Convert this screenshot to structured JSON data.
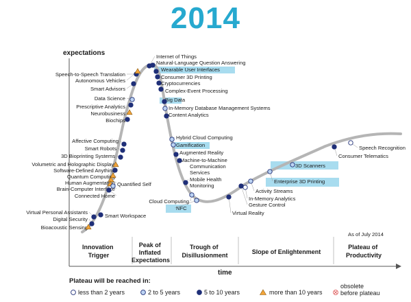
{
  "title": "2014",
  "axes": {
    "y_label": "expectations",
    "x_label": "time"
  },
  "as_of": "As of July 2014",
  "phases": [
    {
      "id": "trigger",
      "lines": [
        "Innovation",
        "Trigger"
      ]
    },
    {
      "id": "peak",
      "lines": [
        "Peak of",
        "Inflated",
        "Expectations"
      ]
    },
    {
      "id": "trough",
      "lines": [
        "Trough of",
        "Disillusionment"
      ]
    },
    {
      "id": "slope",
      "lines": [
        "Slope of Enlightenment"
      ]
    },
    {
      "id": "plateau",
      "lines": [
        "Plateau of",
        "Productivity"
      ]
    }
  ],
  "legend": {
    "title": "Plateau will be reached in:",
    "items": [
      {
        "key": "lt2",
        "label": "less than 2 years"
      },
      {
        "key": "2to5",
        "label": "2 to 5 years"
      },
      {
        "key": "5to10",
        "label": "5 to 10 years"
      },
      {
        "key": "gt10",
        "label": "more than 10 years"
      },
      {
        "key": "obs",
        "label": "obsolete",
        "label2": "before plateau"
      }
    ]
  },
  "colors": {
    "title": "#26a9cf",
    "curve": "#b5b5b5",
    "dark": "#1f2f78",
    "light": "#bcd3f2",
    "triangle": "#f2a43a",
    "highlight": "#a8dcef",
    "obsolete": "#e06060"
  },
  "technologies": [
    {
      "name": "Internet of Things",
      "cat": "5to10"
    },
    {
      "name": "Natural-Language Question Answering",
      "cat": "5to10"
    },
    {
      "name": "Wearable User Interfaces",
      "cat": "5to10",
      "highlight": true
    },
    {
      "name": "Consumer 3D Printing",
      "cat": "5to10"
    },
    {
      "name": "Cryptocurrencies",
      "cat": "5to10"
    },
    {
      "name": "Complex-Event Processing",
      "cat": "5to10"
    },
    {
      "name": "Big Data",
      "cat": "5to10",
      "highlight": true
    },
    {
      "name": "In-Memory Database Management Systems",
      "cat": "2to5"
    },
    {
      "name": "Content Analytics",
      "cat": "5to10"
    },
    {
      "name": "Hybrid Cloud Computing",
      "cat": "2to5"
    },
    {
      "name": "Gamification",
      "cat": "2to5",
      "highlight": true
    },
    {
      "name": "Augmented Reality",
      "cat": "5to10"
    },
    {
      "name": "Machine-to-Machine",
      "cat": "5to10"
    },
    {
      "name": "Communication",
      "cat": "5to10"
    },
    {
      "name": "Services",
      "cat": "5to10"
    },
    {
      "name": "Mobile Health",
      "cat": "5to10"
    },
    {
      "name": "Monitoring",
      "cat": "5to10"
    },
    {
      "name": "Cloud Computing",
      "cat": "2to5"
    },
    {
      "name": "NFC",
      "cat": "2to5",
      "highlight": true
    },
    {
      "name": "Virtual Reality",
      "cat": "5to10"
    },
    {
      "name": "Speech-to-Speech Translation",
      "cat": "5to10"
    },
    {
      "name": "Autonomous Vehicles",
      "cat": "gt10"
    },
    {
      "name": "Smart Advisors",
      "cat": "5to10"
    },
    {
      "name": "Data Science",
      "cat": "2to5"
    },
    {
      "name": "Prescriptive Analytics",
      "cat": "5to10"
    },
    {
      "name": "Neurobusiness",
      "cat": "gt10"
    },
    {
      "name": "Biochips",
      "cat": "5to10"
    },
    {
      "name": "Affective Computing",
      "cat": "5to10"
    },
    {
      "name": "Smart Robots",
      "cat": "5to10"
    },
    {
      "name": "3D Bioprinting Systems",
      "cat": "5to10"
    },
    {
      "name": "Volumetric and Holographic Displays",
      "cat": "gt10"
    },
    {
      "name": "Software-Defined Anything",
      "cat": "5to10"
    },
    {
      "name": "Quantum Computing",
      "cat": "gt10"
    },
    {
      "name": "Human Augmentation",
      "cat": "gt10"
    },
    {
      "name": "Brain-Computer Interface",
      "cat": "gt10"
    },
    {
      "name": "Connected Home",
      "cat": "5to10"
    },
    {
      "name": "Quantified Self",
      "cat": "2to5"
    },
    {
      "name": "Virtual Personal Assistants",
      "cat": "5to10"
    },
    {
      "name": "Digital Security",
      "cat": "5to10"
    },
    {
      "name": "Bioacoustic Sensing",
      "cat": "gt10"
    },
    {
      "name": "Smart Workspace",
      "cat": "5to10"
    },
    {
      "name": "In-Memory Analytics",
      "cat": "lt2"
    },
    {
      "name": "Activity Streams",
      "cat": "2to5"
    },
    {
      "name": "Gesture Control",
      "cat": "5to10"
    },
    {
      "name": "3D Scanners",
      "cat": "2to5",
      "highlight": true
    },
    {
      "name": "Enterprise 3D Printing",
      "cat": "2to5",
      "highlight": true
    },
    {
      "name": "Speech Recognition",
      "cat": "lt2"
    },
    {
      "name": "Consumer Telematics",
      "cat": "5to10"
    }
  ]
}
